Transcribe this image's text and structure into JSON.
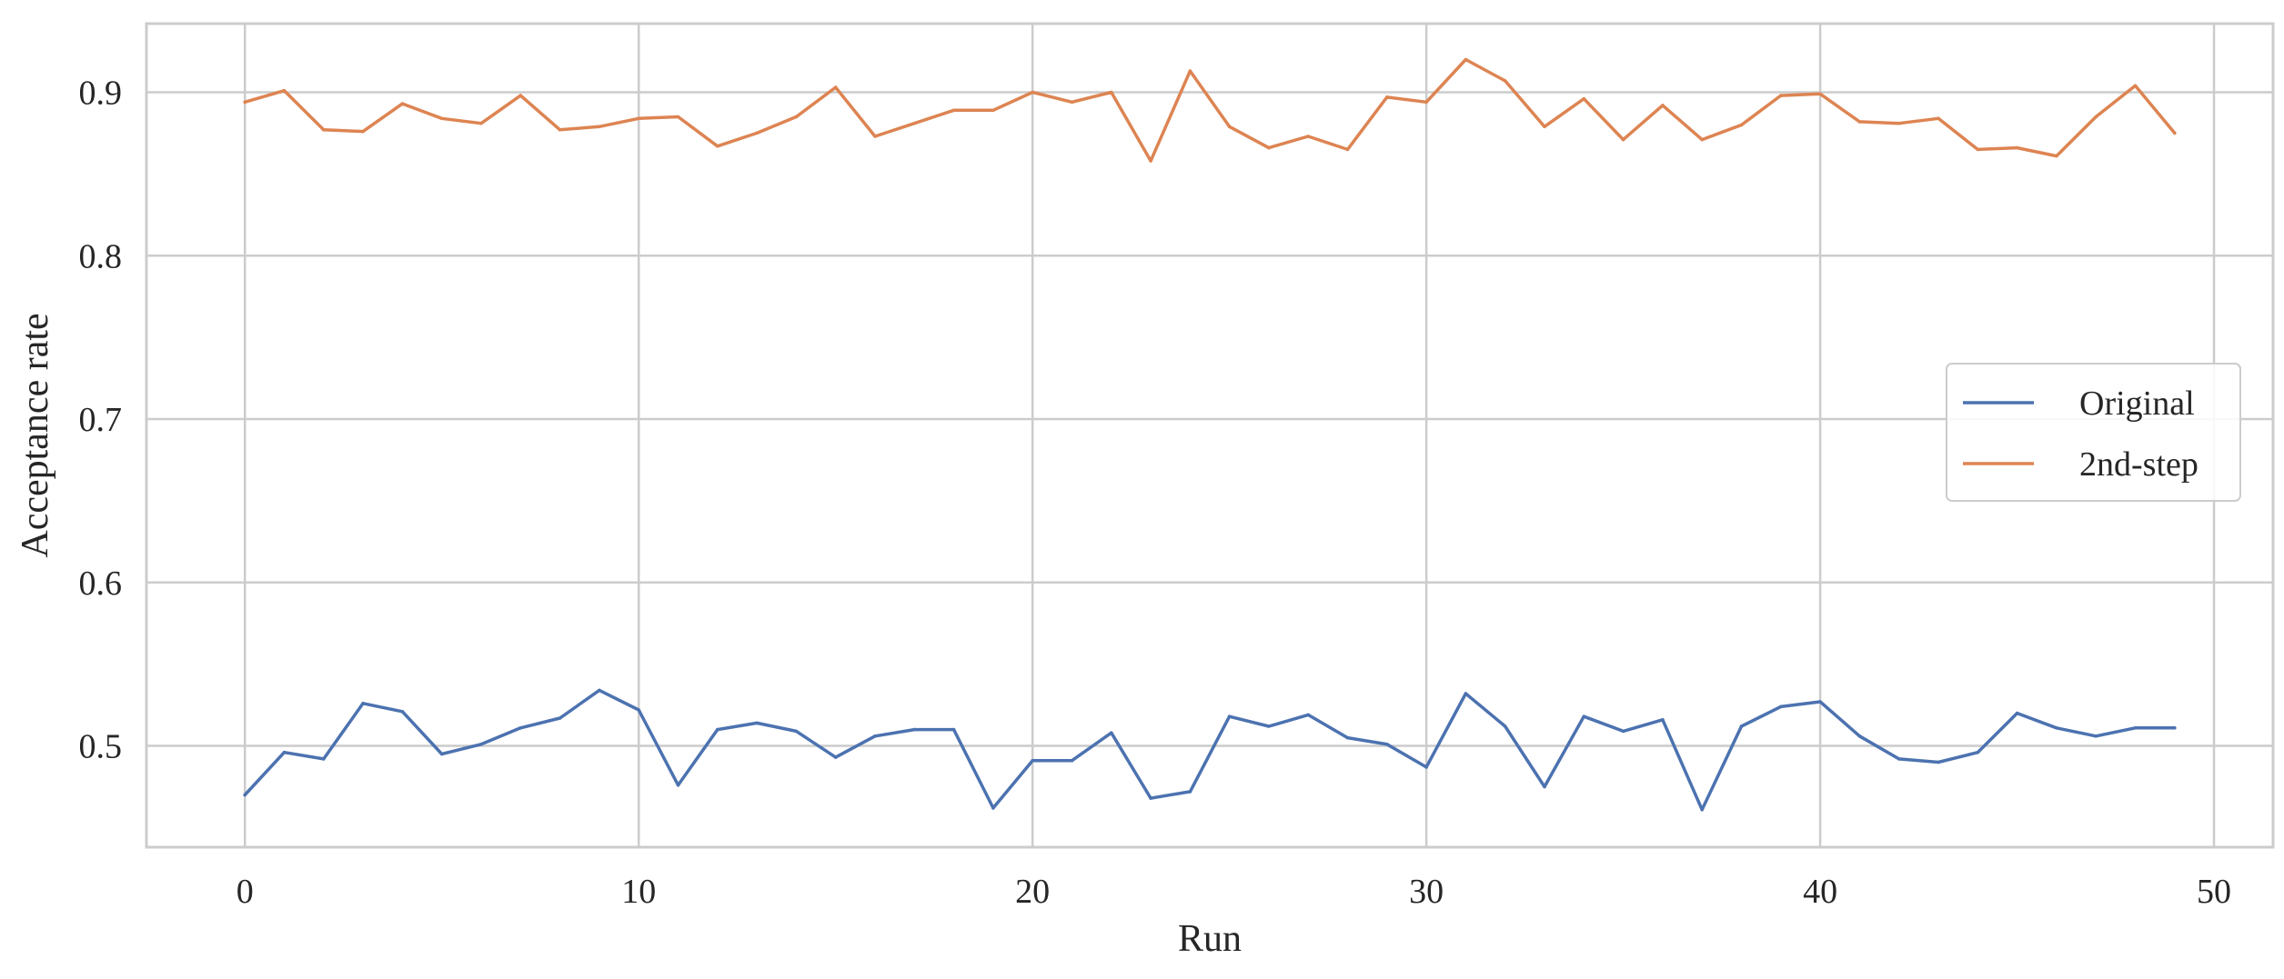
{
  "chart_data": {
    "type": "line",
    "title": "",
    "xlabel": "Run",
    "ylabel": "Acceptance rate",
    "xlim": [
      -2.5,
      51.5
    ],
    "ylim": [
      0.438,
      0.942
    ],
    "x_ticks": [
      0,
      10,
      20,
      30,
      40,
      50
    ],
    "y_ticks": [
      0.5,
      0.6,
      0.7,
      0.8,
      0.9
    ],
    "x_tick_labels": [
      "0",
      "10",
      "20",
      "30",
      "40",
      "50"
    ],
    "y_tick_labels": [
      "0.5",
      "0.6",
      "0.7",
      "0.8",
      "0.9"
    ],
    "grid": true,
    "legend_position": "center-right",
    "x": [
      0,
      1,
      2,
      3,
      4,
      5,
      6,
      7,
      8,
      9,
      10,
      11,
      12,
      13,
      14,
      15,
      16,
      17,
      18,
      19,
      20,
      21,
      22,
      23,
      24,
      25,
      26,
      27,
      28,
      29,
      30,
      31,
      32,
      33,
      34,
      35,
      36,
      37,
      38,
      39,
      40,
      41,
      42,
      43,
      44,
      45,
      46,
      47,
      48,
      49
    ],
    "series": [
      {
        "name": "Original",
        "color": "#4c72b0",
        "values": [
          0.47,
          0.496,
          0.492,
          0.526,
          0.521,
          0.495,
          0.501,
          0.511,
          0.517,
          0.534,
          0.522,
          0.476,
          0.51,
          0.514,
          0.509,
          0.493,
          0.506,
          0.51,
          0.51,
          0.462,
          0.491,
          0.491,
          0.508,
          0.468,
          0.472,
          0.518,
          0.512,
          0.519,
          0.505,
          0.501,
          0.487,
          0.532,
          0.512,
          0.475,
          0.518,
          0.509,
          0.516,
          0.461,
          0.512,
          0.524,
          0.527,
          0.506,
          0.492,
          0.49,
          0.496,
          0.52,
          0.511,
          0.506,
          0.511,
          0.511
        ]
      },
      {
        "name": "2nd-step",
        "color": "#dd8452",
        "values": [
          0.894,
          0.901,
          0.877,
          0.876,
          0.893,
          0.884,
          0.881,
          0.898,
          0.877,
          0.879,
          0.884,
          0.885,
          0.867,
          0.875,
          0.885,
          0.903,
          0.873,
          0.881,
          0.889,
          0.889,
          0.9,
          0.894,
          0.9,
          0.858,
          0.913,
          0.879,
          0.866,
          0.873,
          0.865,
          0.897,
          0.894,
          0.92,
          0.907,
          0.879,
          0.896,
          0.871,
          0.892,
          0.871,
          0.88,
          0.898,
          0.899,
          0.882,
          0.881,
          0.884,
          0.865,
          0.866,
          0.861,
          0.885,
          0.904,
          0.875
        ]
      }
    ]
  }
}
